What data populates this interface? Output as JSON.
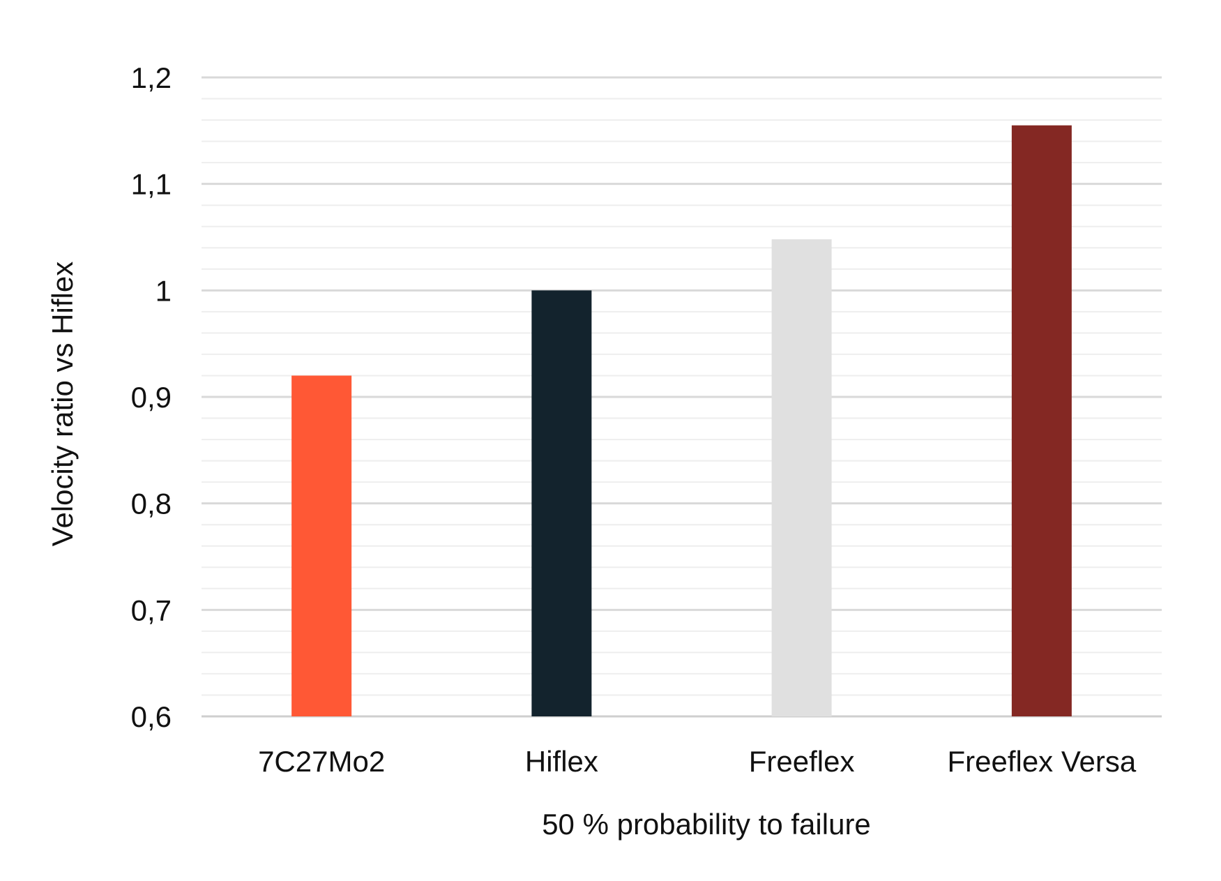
{
  "chart_data": {
    "type": "bar",
    "categories": [
      "7C27Mo2",
      "Hiflex",
      "Freeflex",
      "Freeflex Versa"
    ],
    "values": [
      0.92,
      1.0,
      1.048,
      1.155
    ],
    "colors": [
      "#ff5835",
      "#13232d",
      "#e0e0e0",
      "#842823"
    ],
    "xlabel": "50 % probability to failure",
    "ylabel": "Velocity ratio vs Hiflex",
    "ylim": [
      0.6,
      1.2
    ],
    "yticks": [
      0.6,
      0.7,
      0.8,
      0.9,
      1.0,
      1.1,
      1.2
    ],
    "ytick_labels": [
      "0,6",
      "0,7",
      "0,8",
      "0,9",
      "1",
      "1,1",
      "1,2"
    ],
    "minor_step": 0.02,
    "grid": true,
    "grid_color": "#d9d9d9",
    "minor_grid_color": "#eeeeee"
  }
}
